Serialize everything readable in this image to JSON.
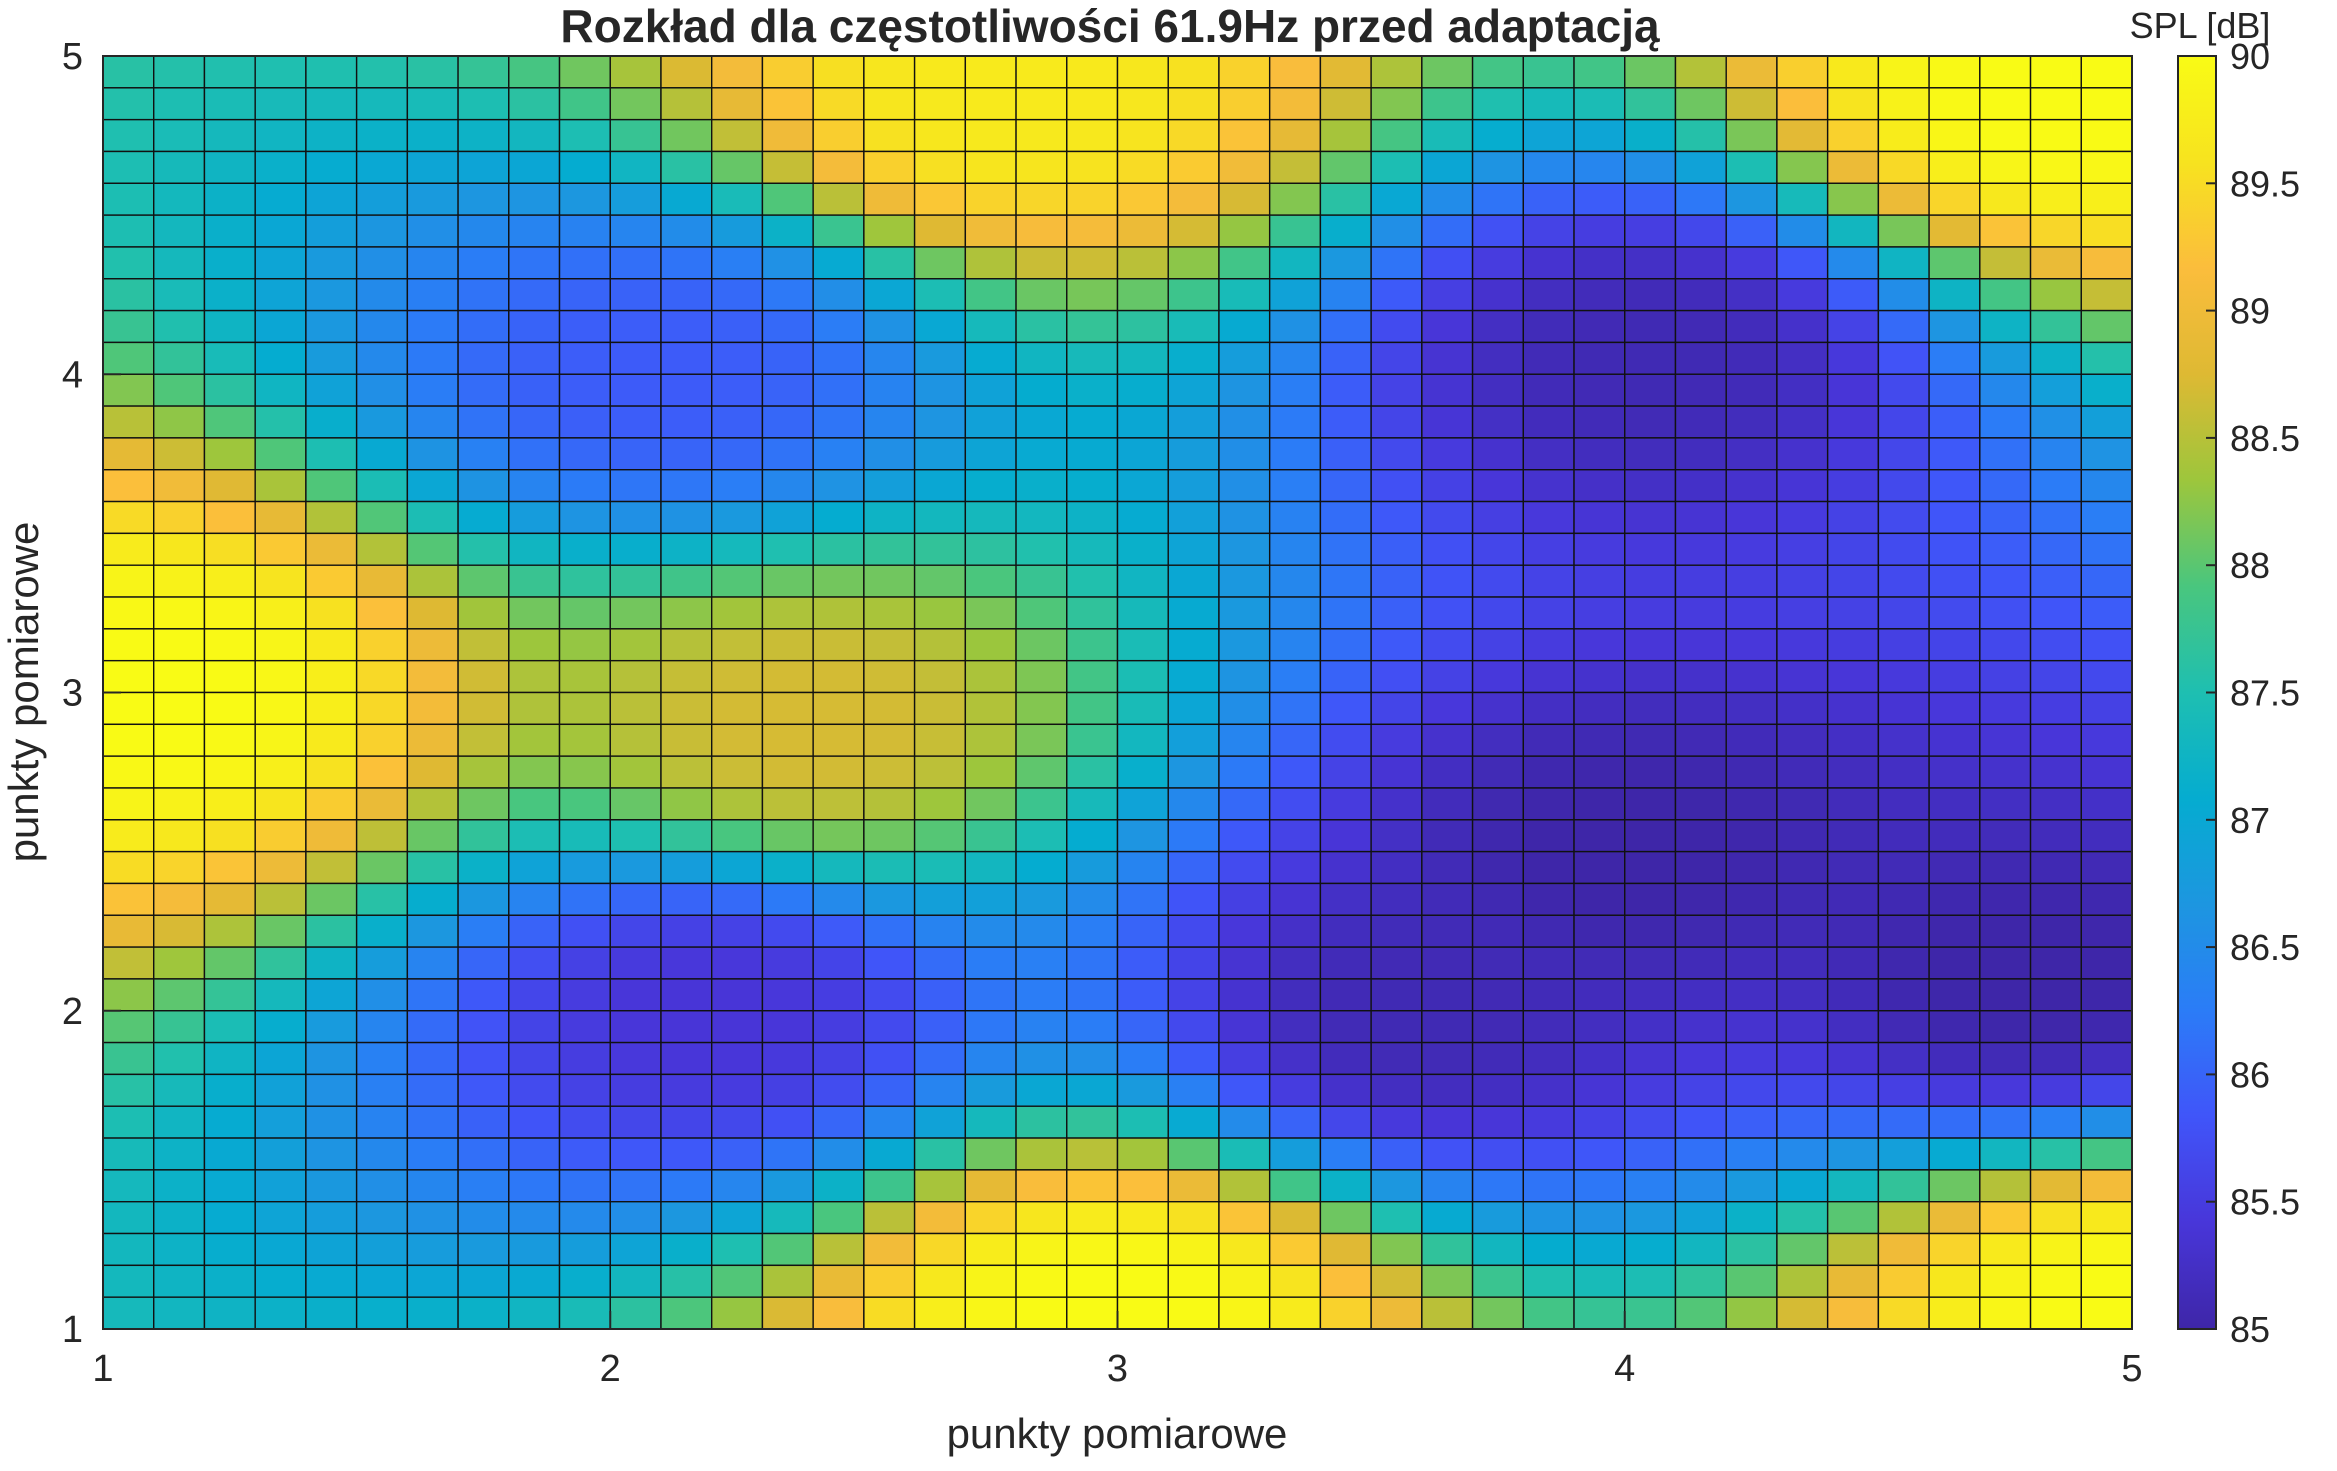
{
  "chart_data": {
    "type": "heatmap",
    "title": "Rozkład dla częstotliwości 61.9Hz przed adaptacją",
    "xlabel": "punkty pomiarowe",
    "ylabel": "punkty pomiarowe",
    "xlim": [
      1,
      5
    ],
    "ylim": [
      1,
      5
    ],
    "x_ticks": [
      "1",
      "2",
      "3",
      "4",
      "5"
    ],
    "y_ticks": [
      "1",
      "2",
      "3",
      "4",
      "5"
    ],
    "grid_cols": 40,
    "grid_rows": 40,
    "colorbar": {
      "label": "SPL [dB]",
      "range": [
        85,
        90
      ],
      "ticks": [
        "85",
        "85.5",
        "86",
        "86.5",
        "87",
        "87.5",
        "88",
        "88.5",
        "89",
        "89.5",
        "90"
      ],
      "colormap": "parula",
      "colors": [
        "#3e26a8",
        "#4836d9",
        "#4055f9",
        "#2b7cf7",
        "#1d96e0",
        "#05acd0",
        "#1ebfb1",
        "#49c67e",
        "#9dc63c",
        "#deb933",
        "#fbbd3c",
        "#f7e31f",
        "#f9fb15"
      ]
    },
    "extrema": [
      {
        "x": 1.1,
        "y": 3.0,
        "value": 90.0
      },
      {
        "x": 3.0,
        "y": 1.05,
        "value": 90.0
      },
      {
        "x": 5.0,
        "y": 1.05,
        "value": 90.0
      },
      {
        "x": 2.8,
        "y": 4.9,
        "value": 89.7
      },
      {
        "x": 4.85,
        "y": 4.9,
        "value": 90.0
      },
      {
        "x": 4.05,
        "y": 4.05,
        "value": 85.1
      },
      {
        "x": 4.0,
        "y": 2.5,
        "value": 85.0
      },
      {
        "x": 4.8,
        "y": 2.1,
        "value": 85.0
      },
      {
        "x": 3.6,
        "y": 2.0,
        "value": 85.1
      },
      {
        "x": 2.2,
        "y": 2.0,
        "value": 85.4
      },
      {
        "x": 2.1,
        "y": 4.0,
        "value": 85.9
      },
      {
        "x": 2.4,
        "y": 2.9,
        "value": 88.7
      }
    ]
  }
}
